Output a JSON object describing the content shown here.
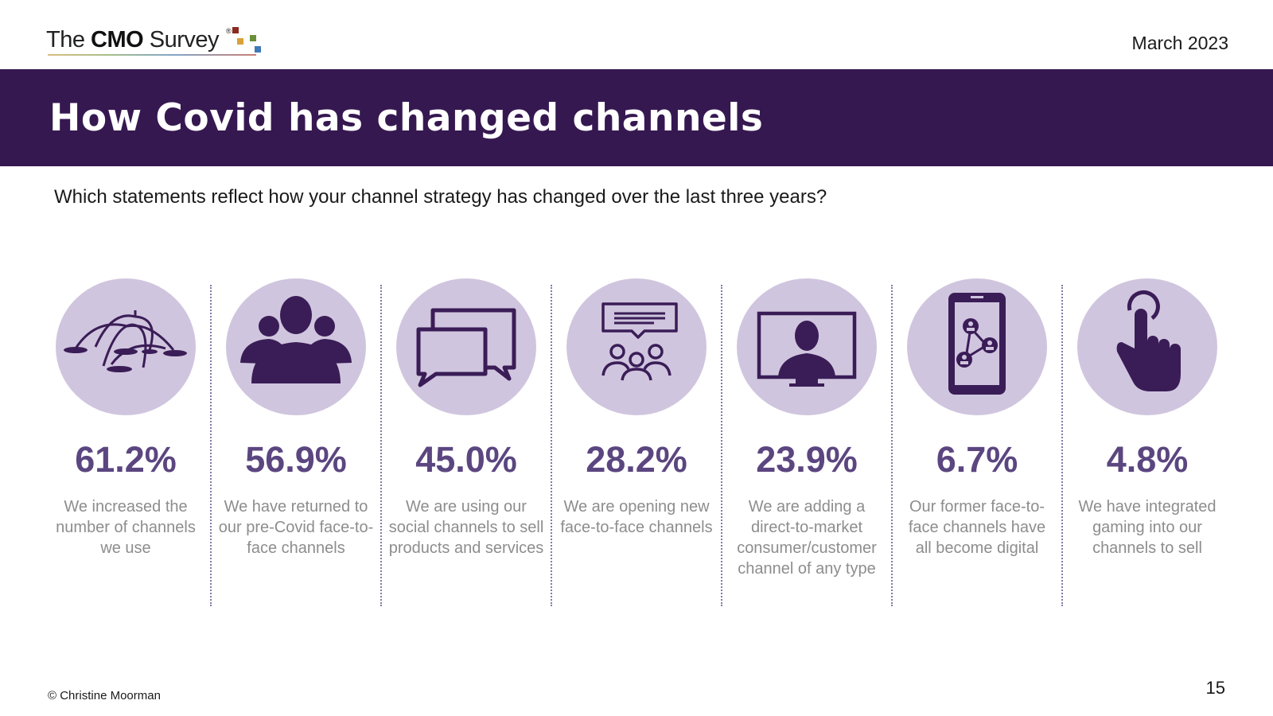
{
  "header": {
    "logo": {
      "the": "The ",
      "cmo": "CMO",
      "survey": " Survey",
      "registered": "®"
    },
    "date": "March 2023"
  },
  "banner": {
    "title": "How Covid has changed channels"
  },
  "question": "Which statements reflect how your channel strategy has changed over the last three years?",
  "colors": {
    "banner": "#361851",
    "circle": "#d0c5de",
    "icon": "#3a1d57",
    "percent": "#5b4680",
    "description": "#8d8d8d"
  },
  "stats": [
    {
      "icon": "fountain-icon",
      "percent": "61.2%",
      "description": "We increased the number of channels we use"
    },
    {
      "icon": "people-silhouette-icon",
      "percent": "56.9%",
      "description": "We have returned to our pre-Covid face-to-face channels"
    },
    {
      "icon": "chat-bubbles-icon",
      "percent": "45.0%",
      "description": "We are using our social channels to sell products and services"
    },
    {
      "icon": "group-meeting-icon",
      "percent": "28.2%",
      "description": "We are opening new face-to-face channels"
    },
    {
      "icon": "video-monitor-icon",
      "percent": "23.9%",
      "description": "We are adding a direct-to-market consumer/customer channel of any type"
    },
    {
      "icon": "smartphone-network-icon",
      "percent": "6.7%",
      "description": "Our former face-to-face channels have all become digital"
    },
    {
      "icon": "pointing-hand-icon",
      "percent": "4.8%",
      "description": "We have integrated gaming into our channels to sell"
    }
  ],
  "footer": {
    "copyright": "© Christine Moorman",
    "page": "15"
  }
}
